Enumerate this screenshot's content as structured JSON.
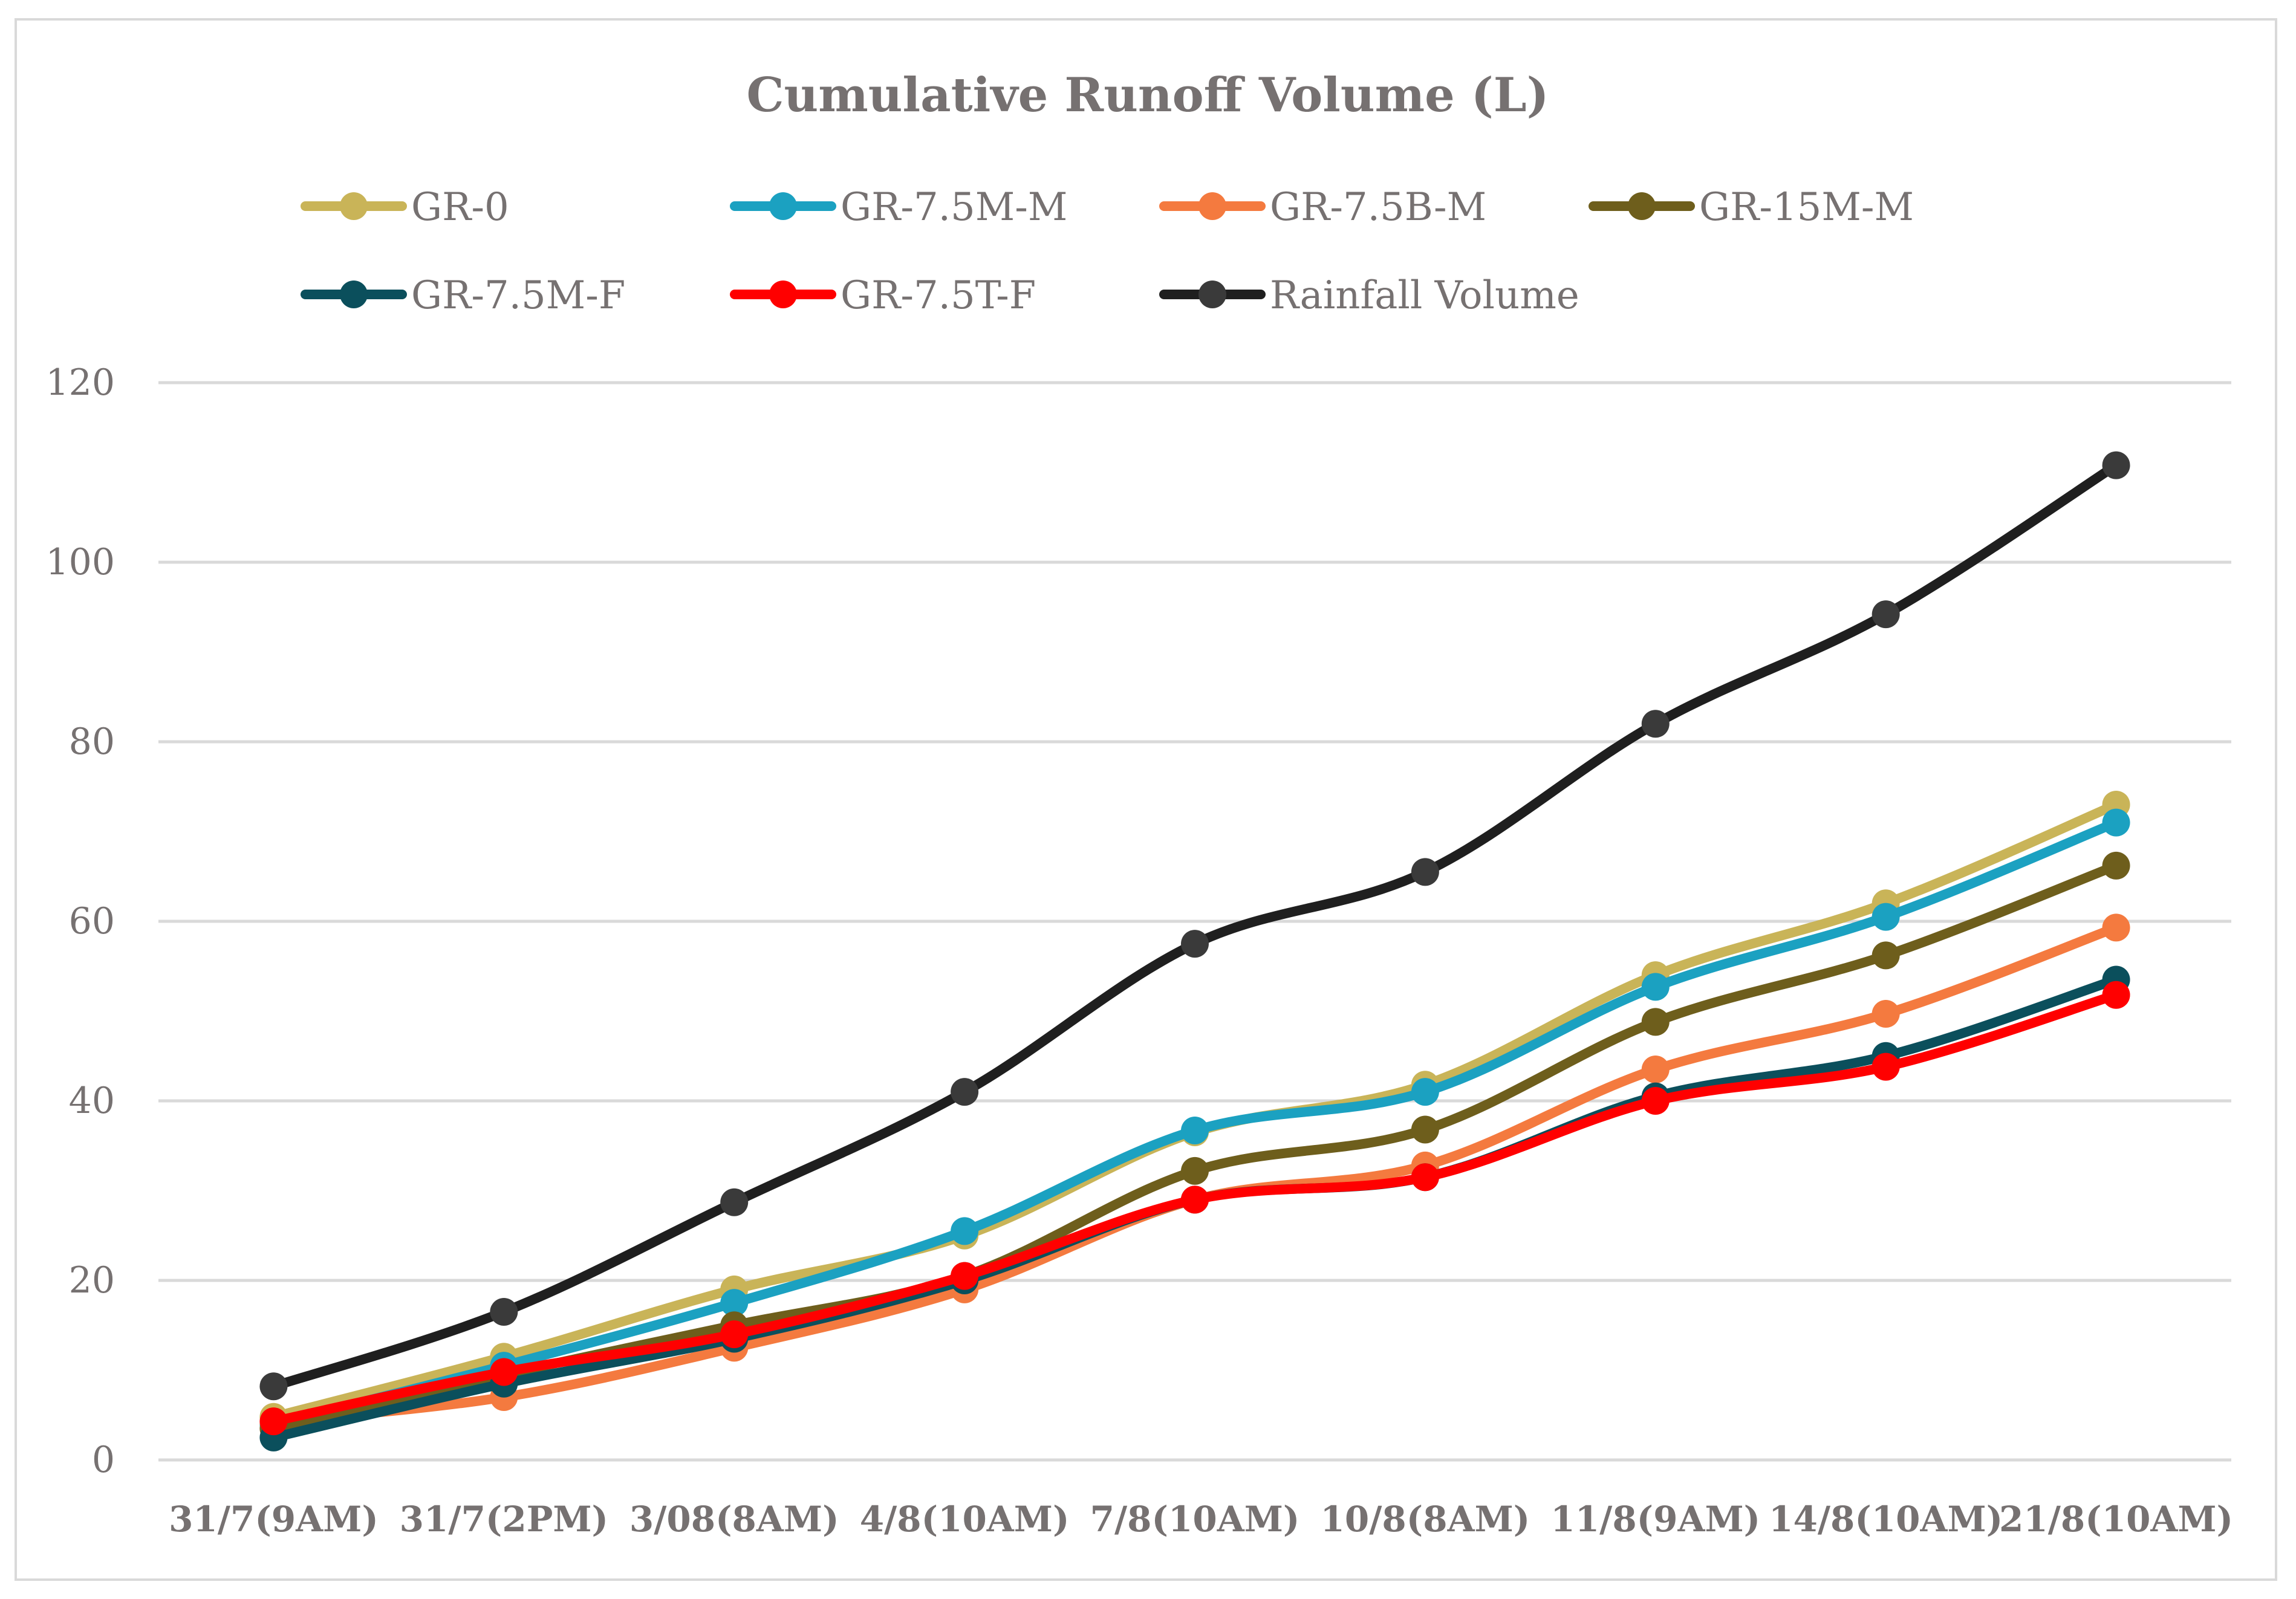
{
  "chart_data": {
    "type": "line",
    "title": "Cumulative Runoff Volume (L)",
    "xlabel": "",
    "ylabel": "",
    "ylim": [
      0,
      120
    ],
    "yticks": [
      0,
      20,
      40,
      60,
      80,
      100,
      120
    ],
    "grid": true,
    "legend_position": "top",
    "categories": [
      "31/7(9AM)",
      "31/7(2PM)",
      "3/08(8AM)",
      "4/8(10AM)",
      "7/8(10AM)",
      "10/8(8AM)",
      "11/8(9AM)",
      "14/8(10AM)",
      "21/8(10AM)"
    ],
    "series": [
      {
        "name": "GR-0",
        "color": "#C9B458",
        "values": [
          4.8,
          11.5,
          19,
          25,
          36.5,
          41.8,
          54,
          62,
          73
        ]
      },
      {
        "name": "GR-7.5M-M",
        "color": "#1BA1C1",
        "values": [
          4,
          10.5,
          17.5,
          25.5,
          36.7,
          41,
          52.7,
          60.5,
          71
        ]
      },
      {
        "name": "GR-7.5B-M",
        "color": "#F47A3F",
        "values": [
          4.2,
          7,
          12.5,
          19,
          29,
          32.8,
          43.5,
          49.7,
          59.3
        ]
      },
      {
        "name": "GR-15M-M",
        "color": "#6E5E1C",
        "values": [
          3.5,
          9.5,
          15,
          20.5,
          32.2,
          36.8,
          48.8,
          56.2,
          66.2
        ]
      },
      {
        "name": "GR-7.5M-F",
        "color": "#0B4F5C",
        "values": [
          2.5,
          8.5,
          13.5,
          20,
          29,
          31.5,
          40.5,
          45,
          53.5
        ]
      },
      {
        "name": "GR-7.5T-F",
        "color": "#FF0000",
        "values": [
          4.3,
          9.8,
          14,
          20.5,
          29,
          31.5,
          40,
          43.8,
          51.8
        ]
      },
      {
        "name": "Rainfall Volume",
        "color": "#1F1F1F",
        "marker_color": "#3A3A3A",
        "values": [
          8.2,
          16.5,
          28.7,
          41,
          57.5,
          65.5,
          82,
          94.2,
          110.8
        ]
      }
    ]
  }
}
